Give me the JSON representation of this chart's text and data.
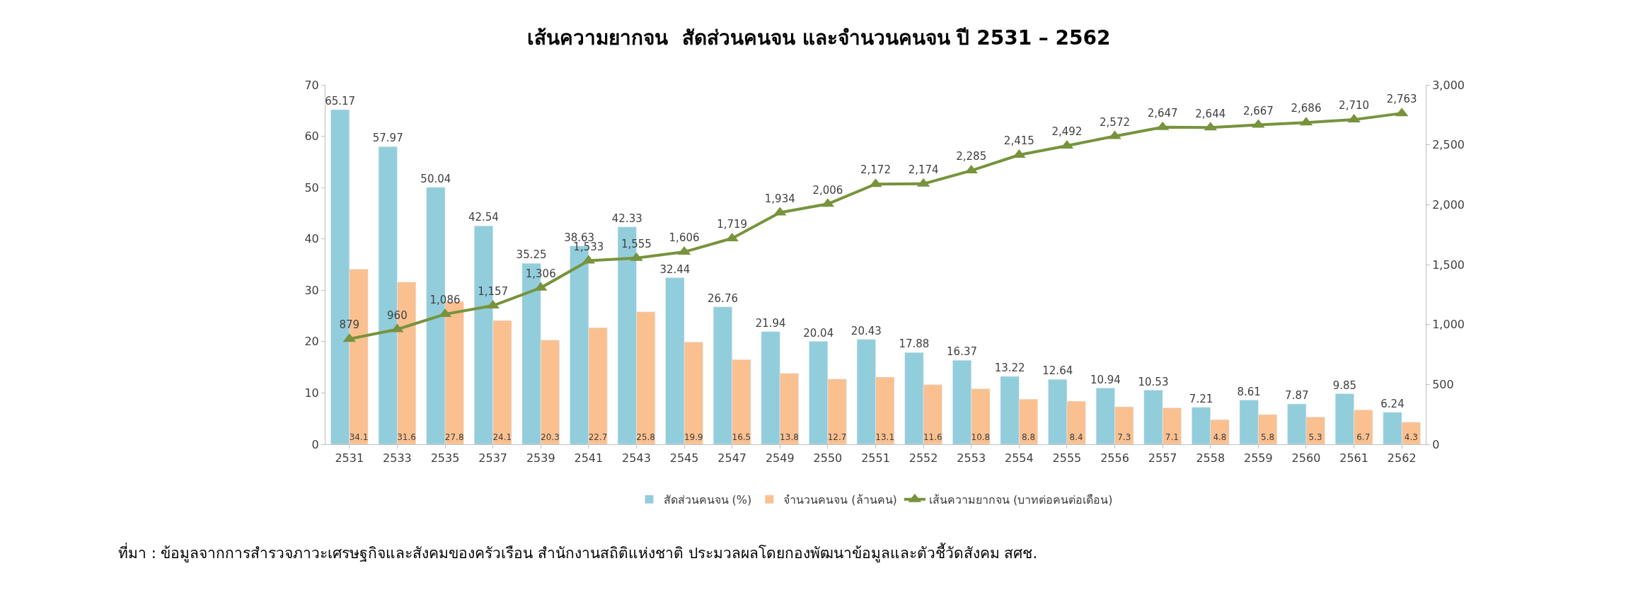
{
  "chart_data": {
    "type": "bar",
    "title": "เส้นความยากจน  สัดส่วนคนจน และจำนวนคนจน ปี 2531 – 2562",
    "categories": [
      "2531",
      "2533",
      "2535",
      "2537",
      "2539",
      "2541",
      "2543",
      "2545",
      "2547",
      "2549",
      "2550",
      "2551",
      "2552",
      "2553",
      "2554",
      "2555",
      "2556",
      "2557",
      "2558",
      "2559",
      "2560",
      "2561",
      "2562"
    ],
    "series": [
      {
        "name": "สัดส่วนคนจน (%)",
        "color": "#92cddc",
        "values": [
          65.17,
          57.97,
          50.04,
          42.54,
          35.25,
          38.63,
          42.33,
          32.44,
          26.76,
          21.94,
          20.04,
          20.43,
          17.88,
          16.37,
          13.22,
          12.64,
          10.94,
          10.53,
          7.21,
          8.61,
          7.87,
          9.85,
          6.24
        ]
      },
      {
        "name": "จำนวนคนจน (ล้านคน)",
        "color": "#fac090",
        "values": [
          34.1,
          31.6,
          27.8,
          24.1,
          20.3,
          22.7,
          25.8,
          19.9,
          16.5,
          13.8,
          12.7,
          13.1,
          11.6,
          10.8,
          8.8,
          8.4,
          7.3,
          7.1,
          4.8,
          5.8,
          5.3,
          6.7,
          4.3
        ]
      },
      {
        "name": "เส้นความยากจน (บาทต่อคนต่อเดือน)",
        "type": "line",
        "axis": "y2",
        "color": "#77933c",
        "marker": "triangle",
        "line_style": "solid",
        "values": [
          879,
          960,
          1086,
          1157,
          1306,
          1533,
          1555,
          1606,
          1719,
          1934,
          2006,
          2172,
          2174,
          2285,
          2415,
          2492,
          2572,
          2647,
          2644,
          2667,
          2686,
          2710,
          2763
        ],
        "value_labels": [
          "879",
          "960",
          "1,086",
          "1,157",
          "1,306",
          "1,533",
          "1,555",
          "1,606",
          "1,719",
          "1,934",
          "2,006",
          "2,172",
          "2,174",
          "2,285",
          "2,415",
          "2,492",
          "2,572",
          "2,647",
          "2,644",
          "2,667",
          "2,686",
          "2,710",
          "2,763"
        ]
      }
    ],
    "ylim": [
      0,
      70
    ],
    "yticks": [
      0,
      10,
      20,
      30,
      40,
      50,
      60,
      70
    ],
    "y2lim": [
      0,
      3000
    ],
    "y2ticks": [
      0,
      {
        "value": 500,
        "label": "500"
      },
      {
        "value": 1000,
        "label": "1,000"
      },
      {
        "value": 1500,
        "label": "1,500"
      },
      {
        "value": 2000,
        "label": "2,000"
      },
      {
        "value": 2500,
        "label": "2,500"
      },
      {
        "value": 3000,
        "label": "3,000"
      }
    ],
    "data_labels": true,
    "legend": "bottom",
    "annotations": [
      "ที่มา : ข้อมูลจากการสำรวจภาวะเศรษฐกิจและสังคมของครัวเรือน สำนักงานสถิติแห่งชาติ ประมวลผลโดยกองพัฒนาข้อมูลและตัวชี้วัดสังคม สศช."
    ]
  }
}
